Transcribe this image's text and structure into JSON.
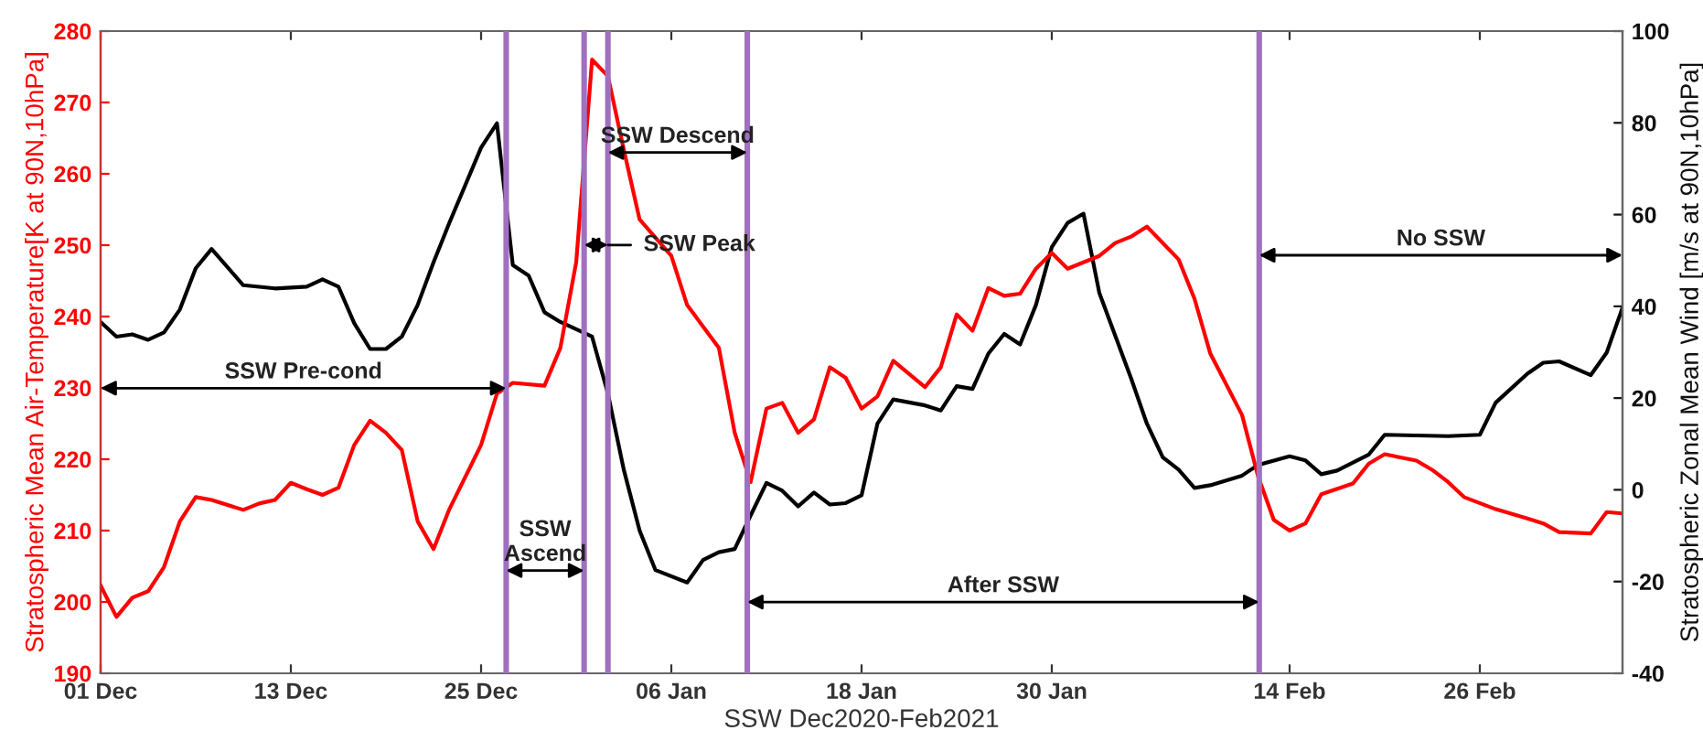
{
  "chart_data": {
    "type": "line",
    "xlabel": "SSW Dec2020-Feb2021",
    "ylabel": "Stratospheric Mean Air-Temperature[K at 90N,10hPa]",
    "y2label": "Stratospheric Zonal Mean Wind [m/s at 90N,10hPa]",
    "xlim": [
      "2020-12-01",
      "2021-03-07"
    ],
    "xticks": [
      {
        "value": "2020-12-01",
        "label": "01 Dec"
      },
      {
        "value": "2020-12-13",
        "label": "13 Dec"
      },
      {
        "value": "2020-12-25",
        "label": "25 Dec"
      },
      {
        "value": "2021-01-06",
        "label": "06 Jan"
      },
      {
        "value": "2021-01-18",
        "label": "18 Jan"
      },
      {
        "value": "2021-01-30",
        "label": "30 Jan"
      },
      {
        "value": "2021-02-14",
        "label": "14 Feb"
      },
      {
        "value": "2021-02-26",
        "label": "26 Feb"
      }
    ],
    "ylim": [
      190,
      280
    ],
    "yticks": [
      190,
      200,
      210,
      220,
      230,
      240,
      250,
      260,
      270,
      280
    ],
    "y2lim": [
      -40,
      100
    ],
    "y2ticks": [
      -40,
      -20,
      0,
      20,
      40,
      60,
      80,
      100
    ],
    "grid": false,
    "line_style": "solid",
    "marker": "none",
    "series": [
      {
        "color": "#ff0000",
        "x": [
          "2020-12-01",
          "2020-12-02",
          "2020-12-03",
          "2020-12-04",
          "2020-12-05",
          "2020-12-06",
          "2020-12-07",
          "2020-12-08",
          "2020-12-10",
          "2020-12-11",
          "2020-12-12",
          "2020-12-13",
          "2020-12-14",
          "2020-12-15",
          "2020-12-16",
          "2020-12-17",
          "2020-12-18",
          "2020-12-19",
          "2020-12-20",
          "2020-12-21",
          "2020-12-22",
          "2020-12-23",
          "2020-12-25",
          "2020-12-26",
          "2020-12-27",
          "2020-12-29",
          "2020-12-30",
          "2020-12-31",
          "2021-01-01",
          "2021-01-02",
          "2021-01-03",
          "2021-01-04",
          "2021-01-06",
          "2021-01-07",
          "2021-01-09",
          "2021-01-10",
          "2021-01-11",
          "2021-01-12",
          "2021-01-13",
          "2021-01-14",
          "2021-01-15",
          "2021-01-16",
          "2021-01-17",
          "2021-01-18",
          "2021-01-19",
          "2021-01-20",
          "2021-01-22",
          "2021-01-23",
          "2021-01-24",
          "2021-01-25",
          "2021-01-26",
          "2021-01-27",
          "2021-01-28",
          "2021-01-29",
          "2021-01-30",
          "2021-01-31",
          "2021-02-02",
          "2021-02-03",
          "2021-02-04",
          "2021-02-05",
          "2021-02-07",
          "2021-02-08",
          "2021-02-09",
          "2021-02-11",
          "2021-02-12",
          "2021-02-13",
          "2021-02-14",
          "2021-02-15",
          "2021-02-16",
          "2021-02-18",
          "2021-02-19",
          "2021-02-20",
          "2021-02-22",
          "2021-02-23",
          "2021-02-24",
          "2021-02-25",
          "2021-02-27",
          "2021-03-01",
          "2021-03-02",
          "2021-03-03",
          "2021-03-05",
          "2021-03-06",
          "2021-03-07"
        ],
        "values": [
          202.3,
          197.9,
          200.6,
          201.5,
          204.9,
          211.3,
          214.7,
          214.3,
          212.9,
          213.8,
          214.3,
          216.7,
          215.8,
          215.0,
          216.0,
          222.0,
          225.4,
          223.7,
          221.3,
          211.3,
          207.4,
          213.0,
          222.0,
          229.2,
          230.7,
          230.3,
          235.6,
          247.6,
          276.0,
          273.7,
          263.4,
          253.6,
          248.5,
          241.6,
          235.6,
          223.7,
          216.8,
          227.1,
          227.9,
          223.7,
          225.6,
          232.9,
          231.4,
          227.1,
          228.8,
          233.8,
          230.1,
          232.9,
          240.3,
          238.0,
          244.0,
          242.9,
          243.2,
          246.7,
          248.9,
          246.7,
          248.5,
          250.3,
          251.2,
          252.6,
          248.0,
          242.5,
          234.8,
          226.2,
          217.7,
          211.5,
          210.0,
          211.0,
          215.1,
          216.6,
          219.4,
          220.7,
          219.8,
          218.5,
          216.8,
          214.7,
          213.0,
          211.7,
          211.0,
          209.8,
          209.6,
          212.6,
          212.4
        ]
      },
      {
        "color": "#000000",
        "axis": "y2",
        "x": [
          "2020-12-01",
          "2020-12-02",
          "2020-12-03",
          "2020-12-04",
          "2020-12-05",
          "2020-12-06",
          "2020-12-07",
          "2020-12-08",
          "2020-12-10",
          "2020-12-12",
          "2020-12-14",
          "2020-12-15",
          "2020-12-16",
          "2020-12-17",
          "2020-12-18",
          "2020-12-19",
          "2020-12-20",
          "2020-12-21",
          "2020-12-22",
          "2020-12-23",
          "2020-12-25",
          "2020-12-26",
          "2020-12-27",
          "2020-12-28",
          "2020-12-29",
          "2020-12-30",
          "2020-12-31",
          "2021-01-01",
          "2021-01-02",
          "2021-01-03",
          "2021-01-04",
          "2021-01-05",
          "2021-01-07",
          "2021-01-08",
          "2021-01-09",
          "2021-01-10",
          "2021-01-11",
          "2021-01-12",
          "2021-01-13",
          "2021-01-14",
          "2021-01-15",
          "2021-01-16",
          "2021-01-17",
          "2021-01-18",
          "2021-01-19",
          "2021-01-20",
          "2021-01-22",
          "2021-01-23",
          "2021-01-24",
          "2021-01-25",
          "2021-01-26",
          "2021-01-27",
          "2021-01-28",
          "2021-01-29",
          "2021-01-30",
          "2021-01-31",
          "2021-02-01",
          "2021-02-02",
          "2021-02-04",
          "2021-02-05",
          "2021-02-06",
          "2021-02-07",
          "2021-02-08",
          "2021-02-09",
          "2021-02-11",
          "2021-02-12",
          "2021-02-14",
          "2021-02-15",
          "2021-02-16",
          "2021-02-17",
          "2021-02-19",
          "2021-02-20",
          "2021-02-24",
          "2021-02-26",
          "2021-02-27",
          "2021-03-01",
          "2021-03-02",
          "2021-03-03",
          "2021-03-05",
          "2021-03-06",
          "2021-03-07"
        ],
        "values": [
          36.6,
          33.4,
          33.9,
          32.7,
          34.3,
          39.3,
          48.3,
          52.5,
          44.6,
          43.9,
          44.3,
          45.9,
          44.3,
          36.3,
          30.7,
          30.7,
          33.4,
          40.3,
          49.6,
          58.2,
          74.6,
          79.9,
          49.0,
          46.7,
          38.7,
          36.6,
          35.0,
          33.4,
          21.0,
          4.4,
          -8.9,
          -17.5,
          -20.2,
          -15.3,
          -13.6,
          -12.9,
          -5.6,
          1.5,
          -0.2,
          -3.6,
          -0.6,
          -3.2,
          -2.9,
          -1.2,
          14.4,
          19.7,
          18.4,
          17.3,
          22.6,
          22.0,
          29.7,
          34.0,
          31.7,
          40.3,
          52.9,
          58.2,
          60.2,
          42.9,
          24.3,
          14.4,
          7.1,
          4.4,
          0.4,
          1.0,
          3.1,
          5.4,
          7.3,
          6.4,
          3.4,
          4.2,
          7.7,
          12.0,
          11.7,
          12.0,
          19.0,
          25.3,
          27.7,
          28.0,
          25.0,
          29.9,
          39.7
        ]
      }
    ],
    "ref_lines": [
      {
        "axis": "x",
        "value": "2020-12-26T14:00",
        "color": "#a070c0"
      },
      {
        "axis": "x",
        "value": "2020-12-31T12:00",
        "color": "#a070c0"
      },
      {
        "axis": "x",
        "value": "2021-01-02",
        "color": "#a070c0"
      },
      {
        "axis": "x",
        "value": "2021-01-10T19:00",
        "color": "#a070c0"
      },
      {
        "axis": "x",
        "value": "2021-02-12T02:00",
        "color": "#a070c0"
      }
    ],
    "annotations": [
      "SSW Pre-cond",
      "SSW\nAscend",
      "SSW Peak",
      "SSW Descend",
      "After SSW",
      "No SSW"
    ]
  }
}
